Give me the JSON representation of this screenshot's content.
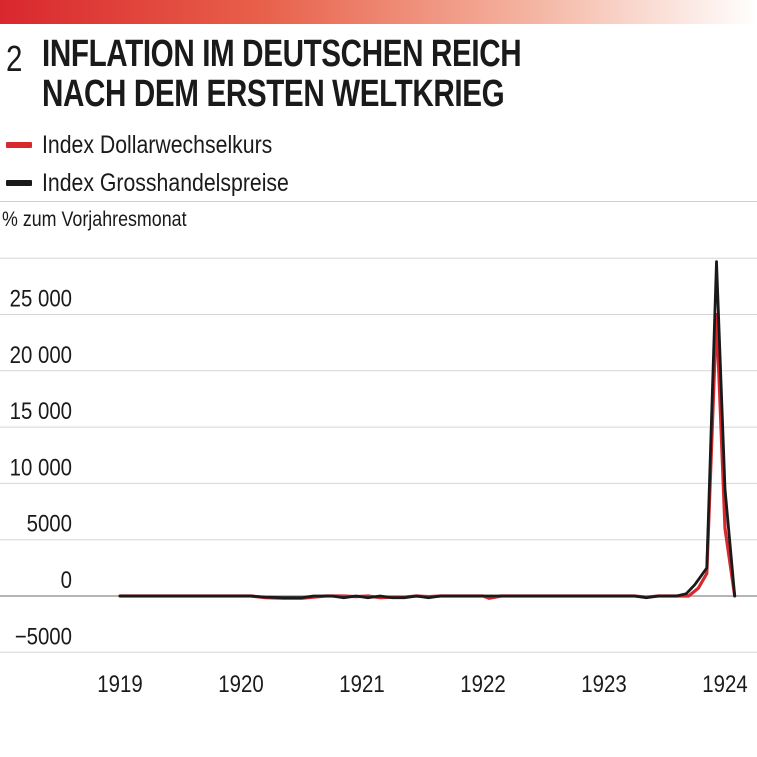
{
  "figure": {
    "number": "2",
    "title": "INFLATION IM DEUTSCHEN REICH\nNACH DEM ERSTEN WELTKRIEG"
  },
  "colors": {
    "accent": "#d9272e",
    "dollar_series": "#d9272e",
    "wholesale_series": "#1a1a1a",
    "gridline": "#d6d6d6"
  },
  "chart_data": {
    "type": "line",
    "ylabel": "% zum Vorjahresmonat",
    "xlabel": "",
    "xlim": [
      1918.92,
      1924.1
    ],
    "ylim": [
      -5000,
      30000
    ],
    "yticks": [
      -5000,
      0,
      5000,
      10000,
      15000,
      20000,
      25000
    ],
    "ytick_labels": [
      "−5000",
      "0",
      "5000",
      "10 000",
      "15 000",
      "20 000",
      "25 000"
    ],
    "xticks": [
      1919,
      1920,
      1921,
      1922,
      1923,
      1924
    ],
    "xtick_labels": [
      "1919",
      "1920",
      "1921",
      "1922",
      "1923",
      "1924"
    ],
    "grid": true,
    "legend": "top-left",
    "series": [
      {
        "name": "Index Dollarwechselkurs",
        "color": "#d9272e",
        "x": [
          1919.0,
          1919.5,
          1920.0,
          1920.08,
          1920.2,
          1920.35,
          1920.5,
          1920.7,
          1920.85,
          1920.95,
          1921.05,
          1921.15,
          1921.25,
          1921.35,
          1921.45,
          1921.55,
          1921.65,
          1921.8,
          1922.0,
          1922.05,
          1922.15,
          1922.5,
          1923.0,
          1923.25,
          1923.35,
          1923.45,
          1923.6,
          1923.7,
          1923.78,
          1923.85,
          1923.93,
          1924.0,
          1924.08
        ],
        "y": [
          0,
          0,
          0,
          0,
          -150,
          -200,
          -200,
          0,
          0,
          -50,
          0,
          -150,
          -100,
          -100,
          0,
          -50,
          0,
          0,
          0,
          -200,
          0,
          0,
          0,
          0,
          -100,
          0,
          0,
          0,
          700,
          2000,
          25000,
          6000,
          0
        ]
      },
      {
        "name": "Index Grosshandelspreise",
        "color": "#1a1a1a",
        "x": [
          1919.0,
          1919.5,
          1920.0,
          1920.08,
          1920.2,
          1920.35,
          1920.5,
          1920.6,
          1920.75,
          1920.85,
          1920.95,
          1921.05,
          1921.15,
          1921.25,
          1921.35,
          1921.45,
          1921.55,
          1921.65,
          1921.8,
          1922.0,
          1922.5,
          1923.0,
          1923.25,
          1923.35,
          1923.45,
          1923.6,
          1923.68,
          1923.75,
          1923.85,
          1923.93,
          1924.0,
          1924.08
        ],
        "y": [
          0,
          0,
          0,
          0,
          -100,
          -150,
          -150,
          0,
          0,
          -150,
          0,
          -150,
          0,
          -150,
          -150,
          0,
          -150,
          0,
          0,
          0,
          0,
          0,
          0,
          -150,
          0,
          0,
          200,
          1000,
          2500,
          29700,
          9500,
          0
        ]
      }
    ]
  }
}
